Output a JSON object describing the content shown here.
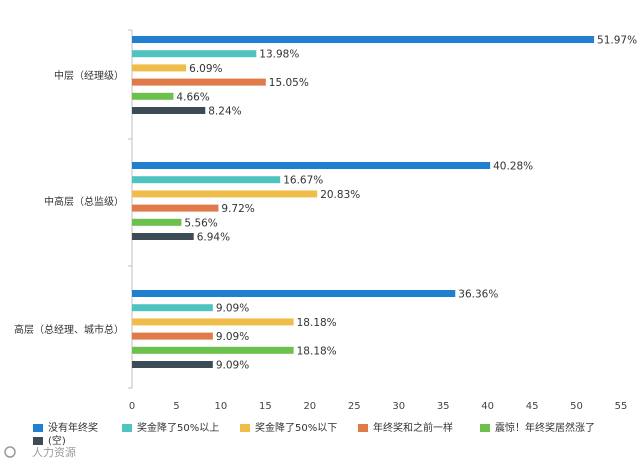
{
  "chart_data": {
    "type": "bar",
    "orientation": "horizontal",
    "categories": [
      "中层（经理级）",
      "中高层（总监级）",
      "高层（总经理、城市总）"
    ],
    "series": [
      {
        "name": "没有年终奖",
        "color": "#1f7fd0",
        "values": [
          51.97,
          40.28,
          36.36
        ]
      },
      {
        "name": "奖金降了50%以上",
        "color": "#4ec3bf",
        "values": [
          13.98,
          16.67,
          9.09
        ]
      },
      {
        "name": "奖金降了50%以下",
        "color": "#efbe4a",
        "values": [
          6.09,
          20.83,
          18.18
        ]
      },
      {
        "name": "年终奖和之前一样",
        "color": "#e07a48",
        "values": [
          15.05,
          9.72,
          9.09
        ]
      },
      {
        "name": "震惊！年终奖居然涨了",
        "color": "#6cc14c",
        "values": [
          4.66,
          5.56,
          18.18
        ]
      },
      {
        "name": "(空)",
        "color": "#3d4b57",
        "values": [
          8.24,
          6.94,
          9.09
        ]
      }
    ],
    "value_labels": [
      [
        "51.97%",
        "13.98%",
        "6.09%",
        "15.05%",
        "4.66%",
        "8.24%"
      ],
      [
        "40.28%",
        "16.67%",
        "20.83%",
        "9.72%",
        "5.56%",
        "6.94%"
      ],
      [
        "36.36%",
        "9.09%",
        "18.18%",
        "9.09%",
        "18.18%",
        "9.09%"
      ]
    ],
    "xlim": [
      0,
      55
    ],
    "xticks": [
      "0",
      "5",
      "10",
      "15",
      "20",
      "25",
      "30",
      "35",
      "40",
      "45",
      "50",
      "55"
    ],
    "grid": false,
    "legend_position": "bottom"
  },
  "watermark": "人力资源"
}
